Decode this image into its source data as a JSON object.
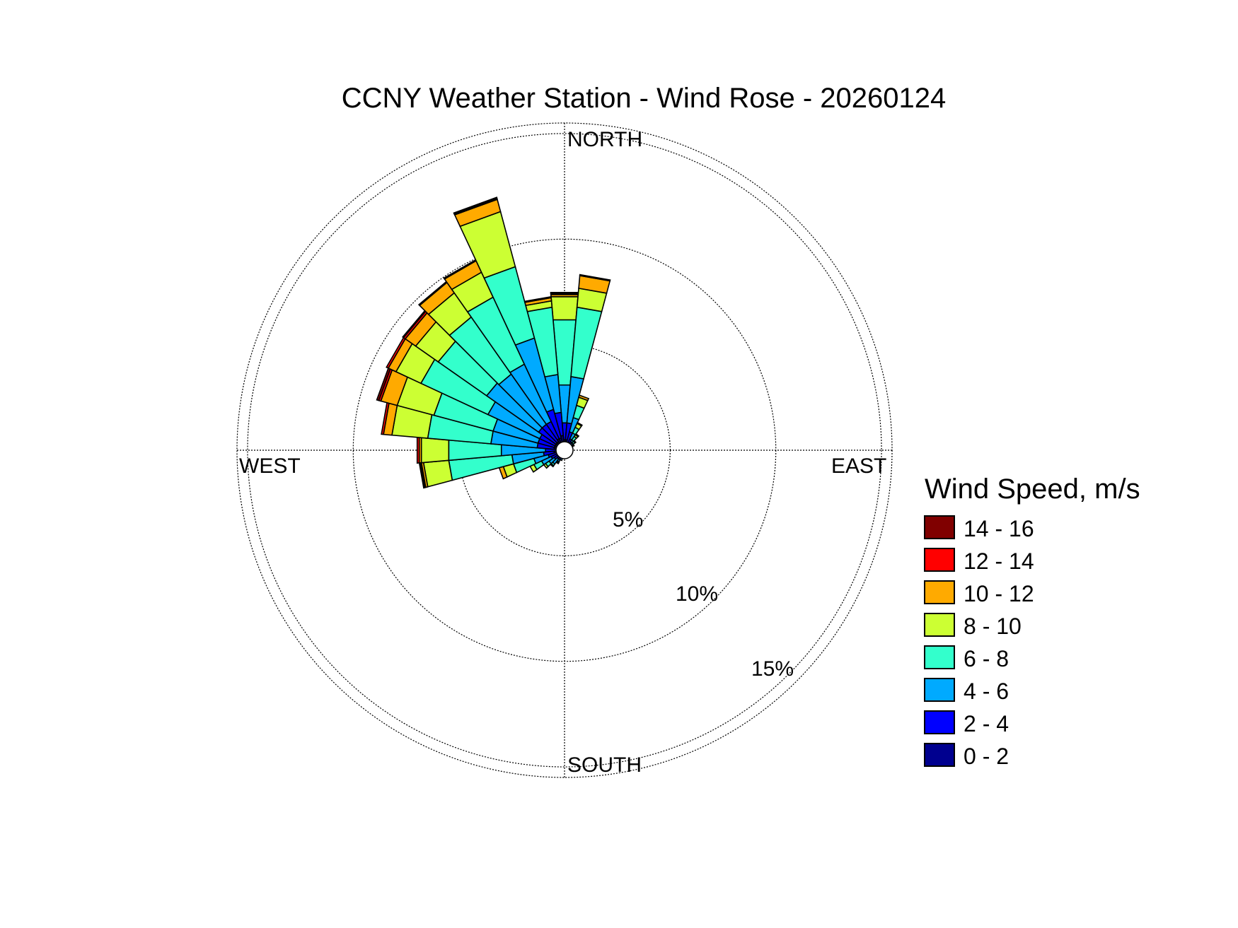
{
  "chart_data": {
    "type": "wind-rose",
    "title": "CCNY Weather Station - Wind Rose - 20260124",
    "directions": [
      "NORTH",
      "EAST",
      "SOUTH",
      "WEST"
    ],
    "rings": [
      {
        "value": 5,
        "label": "5%"
      },
      {
        "value": 10,
        "label": "10%"
      },
      {
        "value": 15,
        "label": "15%"
      }
    ],
    "radial_max": 15.5,
    "legend_title": "Wind Speed, m/s",
    "speed_bins": [
      {
        "label": "0 - 2",
        "color": "#00008F"
      },
      {
        "label": "2 - 4",
        "color": "#0000FF"
      },
      {
        "label": "4 - 6",
        "color": "#00AAFF"
      },
      {
        "label": "6 - 8",
        "color": "#33FFCC"
      },
      {
        "label": "8 - 10",
        "color": "#CCFF33"
      },
      {
        "label": "10 - 12",
        "color": "#FFAA00"
      },
      {
        "label": "12 - 14",
        "color": "#FF0000"
      },
      {
        "label": "14 - 16",
        "color": "#800000"
      }
    ],
    "sector_width_deg": 10,
    "sectors": [
      {
        "direction_deg": 0,
        "cumulative": [
          0.5,
          1.3,
          3.1,
          6.2,
          7.3,
          7.4,
          7.45,
          7.5
        ]
      },
      {
        "direction_deg": 10,
        "cumulative": [
          0.5,
          1.3,
          3.5,
          6.8,
          7.7,
          8.3,
          8.35,
          8.35
        ]
      },
      {
        "direction_deg": 20,
        "cumulative": [
          0.4,
          0.9,
          1.6,
          2.2,
          2.6,
          2.7,
          2.7,
          2.7
        ]
      },
      {
        "direction_deg": 30,
        "cumulative": [
          0.3,
          0.6,
          0.9,
          1.2,
          1.4,
          1.45,
          1.45,
          1.45
        ]
      },
      {
        "direction_deg": 40,
        "cumulative": [
          0.3,
          0.5,
          0.6,
          0.8,
          0.9,
          0.95,
          0.95,
          0.95
        ]
      },
      {
        "direction_deg": 50,
        "cumulative": [
          0.2,
          0.4,
          0.5,
          0.6,
          0.65,
          0.65,
          0.65,
          0.65
        ]
      },
      {
        "direction_deg": 60,
        "cumulative": [
          0.2,
          0.3,
          0.4,
          0.45,
          0.5,
          0.5,
          0.5,
          0.5
        ]
      },
      {
        "direction_deg": 70,
        "cumulative": [
          0.2,
          0.3,
          0.35,
          0.4,
          0.4,
          0.4,
          0.4,
          0.4
        ]
      },
      {
        "direction_deg": 80,
        "cumulative": [
          0.2,
          0.3,
          0.3,
          0.3,
          0.3,
          0.3,
          0.3,
          0.3
        ]
      },
      {
        "direction_deg": 90,
        "cumulative": [
          0.2,
          0.25,
          0.25,
          0.25,
          0.25,
          0.25,
          0.25,
          0.25
        ]
      },
      {
        "direction_deg": 100,
        "cumulative": [
          0.2,
          0.25,
          0.25,
          0.25,
          0.25,
          0.25,
          0.25,
          0.25
        ]
      },
      {
        "direction_deg": 110,
        "cumulative": [
          0.2,
          0.25,
          0.25,
          0.25,
          0.25,
          0.25,
          0.25,
          0.25
        ]
      },
      {
        "direction_deg": 120,
        "cumulative": [
          0.2,
          0.25,
          0.25,
          0.25,
          0.25,
          0.25,
          0.25,
          0.25
        ]
      },
      {
        "direction_deg": 130,
        "cumulative": [
          0.2,
          0.25,
          0.25,
          0.25,
          0.25,
          0.25,
          0.25,
          0.25
        ]
      },
      {
        "direction_deg": 140,
        "cumulative": [
          0.2,
          0.2,
          0.2,
          0.2,
          0.2,
          0.2,
          0.2,
          0.2
        ]
      },
      {
        "direction_deg": 150,
        "cumulative": [
          0.2,
          0.2,
          0.2,
          0.2,
          0.2,
          0.2,
          0.2,
          0.2
        ]
      },
      {
        "direction_deg": 160,
        "cumulative": [
          0.2,
          0.2,
          0.2,
          0.2,
          0.2,
          0.2,
          0.2,
          0.2
        ]
      },
      {
        "direction_deg": 170,
        "cumulative": [
          0.2,
          0.2,
          0.2,
          0.2,
          0.2,
          0.2,
          0.2,
          0.2
        ]
      },
      {
        "direction_deg": 180,
        "cumulative": [
          0.2,
          0.2,
          0.2,
          0.2,
          0.2,
          0.2,
          0.2,
          0.2
        ]
      },
      {
        "direction_deg": 190,
        "cumulative": [
          0.2,
          0.25,
          0.25,
          0.25,
          0.25,
          0.25,
          0.25,
          0.25
        ]
      },
      {
        "direction_deg": 200,
        "cumulative": [
          0.3,
          0.4,
          0.5,
          0.5,
          0.5,
          0.5,
          0.5,
          0.5
        ]
      },
      {
        "direction_deg": 210,
        "cumulative": [
          0.3,
          0.5,
          0.6,
          0.65,
          0.7,
          0.7,
          0.7,
          0.7
        ]
      },
      {
        "direction_deg": 220,
        "cumulative": [
          0.3,
          0.5,
          0.8,
          0.9,
          0.95,
          0.95,
          0.95,
          0.95
        ]
      },
      {
        "direction_deg": 230,
        "cumulative": [
          0.3,
          0.6,
          0.9,
          1.1,
          1.2,
          1.2,
          1.2,
          1.2
        ]
      },
      {
        "direction_deg": 240,
        "cumulative": [
          0.4,
          0.7,
          1.2,
          1.6,
          1.8,
          1.8,
          1.8,
          1.8
        ]
      },
      {
        "direction_deg": 250,
        "cumulative": [
          0.4,
          0.8,
          1.5,
          2.5,
          3.0,
          3.2,
          3.2,
          3.2
        ]
      },
      {
        "direction_deg": 260,
        "cumulative": [
          0.5,
          1.0,
          2.5,
          5.5,
          6.7,
          6.8,
          6.85,
          6.9
        ]
      },
      {
        "direction_deg": 270,
        "cumulative": [
          0.4,
          0.9,
          3.0,
          5.5,
          6.8,
          6.9,
          7.0,
          7.0
        ]
      },
      {
        "direction_deg": 280,
        "cumulative": [
          0.5,
          1.3,
          3.5,
          6.5,
          8.2,
          8.6,
          8.7,
          8.7
        ]
      },
      {
        "direction_deg": 290,
        "cumulative": [
          0.5,
          1.3,
          3.5,
          6.4,
          8.2,
          9.0,
          9.1,
          9.2
        ]
      },
      {
        "direction_deg": 300,
        "cumulative": [
          0.5,
          1.3,
          4.0,
          7.5,
          8.8,
          9.2,
          9.3,
          9.3
        ]
      },
      {
        "direction_deg": 310,
        "cumulative": [
          0.5,
          1.5,
          4.5,
          7.3,
          8.6,
          9.2,
          9.3,
          9.35
        ]
      },
      {
        "direction_deg": 320,
        "cumulative": [
          0.5,
          1.5,
          4.4,
          7.7,
          9.1,
          9.7,
          9.7,
          9.75
        ]
      },
      {
        "direction_deg": 330,
        "cumulative": [
          0.6,
          1.5,
          4.5,
          8.0,
          9.3,
          9.9,
          9.9,
          9.95
        ]
      },
      {
        "direction_deg": 340,
        "cumulative": [
          0.6,
          2.0,
          5.5,
          9.0,
          11.7,
          12.3,
          12.35,
          12.4
        ]
      },
      {
        "direction_deg": 350,
        "cumulative": [
          0.7,
          1.8,
          3.6,
          6.8,
          7.1,
          7.25,
          7.3,
          7.3
        ]
      }
    ]
  }
}
